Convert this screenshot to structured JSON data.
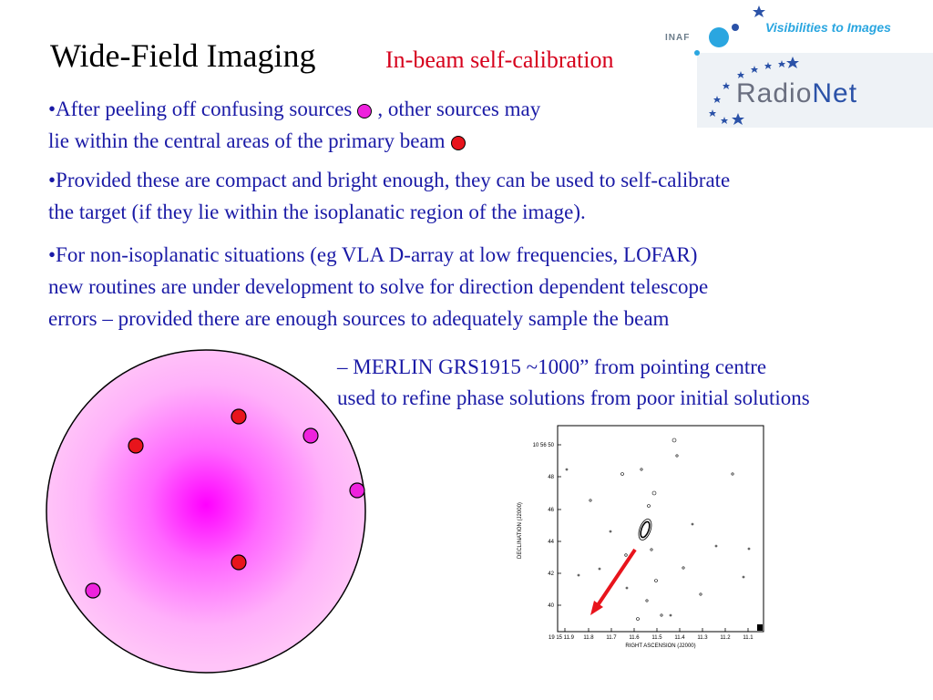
{
  "slide": {
    "title": "Wide-Field Imaging",
    "subtitle": "In-beam self-calibration"
  },
  "logos": {
    "inaf": "INAF",
    "visibilities": "Visibilities to Images",
    "radionet_a": "Radio",
    "radionet_b": "Net"
  },
  "bullets": {
    "b1_line1_a": "•After peeling off confusing sources",
    "b1_line1_b": ", other sources may",
    "b1_line2": "lie within the central areas of the primary beam",
    "b2_line1": "•Provided these are compact and bright enough, they can be used to self-calibrate",
    "b2_line2": "the target (if they lie within the isoplanatic region of the image).",
    "b3_line1": "•For non-isoplanatic situations (eg VLA D-array at low frequencies, LOFAR)",
    "b3_line2": "new routines are under development to solve for direction dependent telescope",
    "b3_line3": "errors    –   provided there are enough sources to adequately sample the beam"
  },
  "merlin": {
    "line1": "– MERLIN GRS1915 ~1000” from pointing centre",
    "line2": "used to refine phase solutions from poor initial solutions"
  },
  "inset": {
    "ylabel": "DECLINATION (J2000)",
    "xlabel": "RIGHT ASCENSION (J2000)",
    "y_ticks": [
      "10 56 50",
      "48",
      "46",
      "44",
      "42",
      "40"
    ],
    "x_ticks": [
      "19 15 11.9",
      "11.8",
      "11.7",
      "11.6",
      "11.5",
      "11.4",
      "11.3",
      "11.2",
      "11.1"
    ]
  },
  "colors": {
    "text_blue": "#1a1aa6",
    "subtitle_red": "#d6001c",
    "beam_center": "#ff00ff",
    "beam_edge": "#ffc4f8",
    "confusing_source": "#ee22dd",
    "calibrator_source": "#e8141c",
    "arrow": "#e8141c"
  }
}
